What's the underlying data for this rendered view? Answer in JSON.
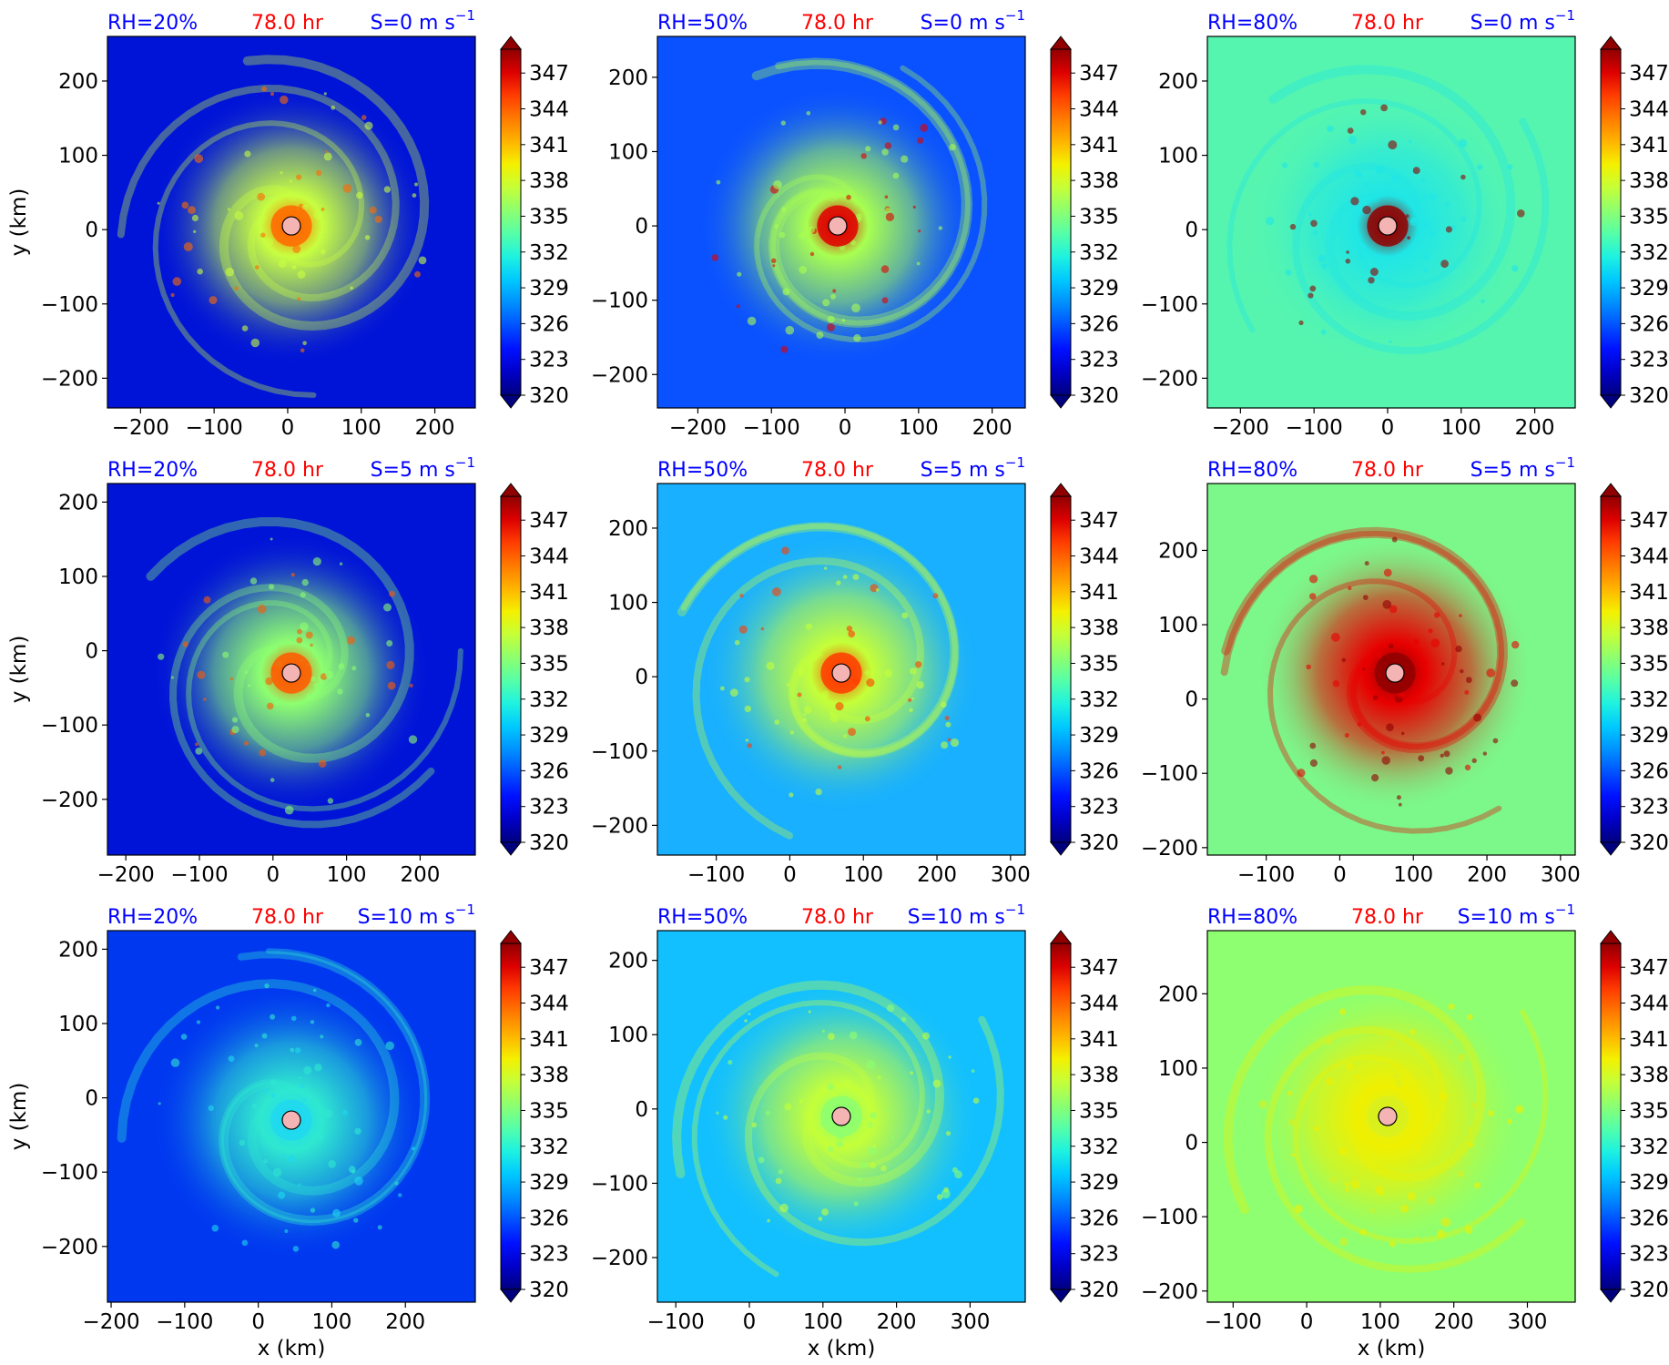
{
  "figure": {
    "time_label": "78.0 hr",
    "colorbar_ticks": [
      "347",
      "344",
      "341",
      "338",
      "335",
      "332",
      "329",
      "326",
      "323",
      "320"
    ],
    "colormap": [
      "#00007f",
      "#0000c8",
      "#0010ff",
      "#0050ff",
      "#0090ff",
      "#00c8ff",
      "#1ef2e0",
      "#55ffa8",
      "#8dff70",
      "#c5ff38",
      "#f4f000",
      "#ffb400",
      "#ff7a00",
      "#ff3c00",
      "#dc0000",
      "#900000"
    ],
    "x_axis_label": "x (km)",
    "y_axis_label": "y (km)"
  },
  "chart_data": [
    {
      "type": "heatmap",
      "rh_label": "RH=20%",
      "time_label": "78.0 hr",
      "shear_label": "S=0 m s",
      "shear_exp": "−1",
      "xlim": [
        -245,
        255
      ],
      "ylim": [
        -240,
        260
      ],
      "x_ticks": [
        -200,
        -100,
        0,
        100,
        200
      ],
      "y_ticks": [
        -200,
        -100,
        0,
        100,
        200
      ],
      "center": [
        5,
        5
      ],
      "colorbar_range": [
        320,
        349
      ],
      "colorbar_ticks": [
        320,
        323,
        326,
        329,
        332,
        335,
        338,
        341,
        344,
        347
      ],
      "xlabel": "",
      "ylabel": "y (km)",
      "background": "#0014d8",
      "core_color": "#ff6a00",
      "ring_color": "#c8ff40"
    },
    {
      "type": "heatmap",
      "rh_label": "RH=50%",
      "time_label": "78.0 hr",
      "shear_label": "S=0 m s",
      "shear_exp": "−1",
      "xlim": [
        -255,
        245
      ],
      "ylim": [
        -245,
        255
      ],
      "x_ticks": [
        -200,
        -100,
        0,
        100,
        200
      ],
      "y_ticks": [
        -200,
        -100,
        0,
        100,
        200
      ],
      "center": [
        -10,
        0
      ],
      "colorbar_range": [
        320,
        349
      ],
      "colorbar_ticks": [
        320,
        323,
        326,
        329,
        332,
        335,
        338,
        341,
        344,
        347
      ],
      "xlabel": "",
      "ylabel": "",
      "background": "#0a52ff",
      "core_color": "#e00000",
      "ring_color": "#a8ff50"
    },
    {
      "type": "heatmap",
      "rh_label": "RH=80%",
      "time_label": "78.0 hr",
      "shear_label": "S=0 m s",
      "shear_exp": "−1",
      "xlim": [
        -245,
        255
      ],
      "ylim": [
        -240,
        260
      ],
      "x_ticks": [
        -200,
        -100,
        0,
        100,
        200
      ],
      "y_ticks": [
        -200,
        -100,
        0,
        100,
        200
      ],
      "center": [
        0,
        5
      ],
      "colorbar_range": [
        320,
        349
      ],
      "colorbar_ticks": [
        320,
        323,
        326,
        329,
        332,
        335,
        338,
        341,
        344,
        347
      ],
      "xlabel": "",
      "ylabel": "",
      "background": "#55f5b0",
      "core_color": "#900000",
      "ring_color": "#20e6e6"
    },
    {
      "type": "heatmap",
      "rh_label": "RH=20%",
      "time_label": "78.0 hr",
      "shear_label": "S=5 m s",
      "shear_exp": "−1",
      "xlim": [
        -225,
        275
      ],
      "ylim": [
        -275,
        225
      ],
      "x_ticks": [
        -200,
        -100,
        0,
        100,
        200
      ],
      "y_ticks": [
        -200,
        -100,
        0,
        100,
        200
      ],
      "center": [
        25,
        -30
      ],
      "colorbar_range": [
        320,
        349
      ],
      "colorbar_ticks": [
        320,
        323,
        326,
        329,
        332,
        335,
        338,
        341,
        344,
        347
      ],
      "xlabel": "",
      "ylabel": "y (km)",
      "background": "#0014d8",
      "core_color": "#ff5a00",
      "ring_color": "#8dff70"
    },
    {
      "type": "heatmap",
      "rh_label": "RH=50%",
      "time_label": "78.0 hr",
      "shear_label": "S=5 m s",
      "shear_exp": "−1",
      "xlim": [
        -180,
        320
      ],
      "ylim": [
        -240,
        260
      ],
      "x_ticks": [
        -100,
        0,
        100,
        200,
        300
      ],
      "y_ticks": [
        -200,
        -100,
        0,
        100,
        200
      ],
      "center": [
        70,
        5
      ],
      "colorbar_range": [
        320,
        349
      ],
      "colorbar_ticks": [
        320,
        323,
        326,
        329,
        332,
        335,
        338,
        341,
        344,
        347
      ],
      "xlabel": "",
      "ylabel": "",
      "background": "#18b0ff",
      "core_color": "#ff3c00",
      "ring_color": "#c5ff38"
    },
    {
      "type": "heatmap",
      "rh_label": "RH=80%",
      "time_label": "78.0 hr",
      "shear_label": "S=5 m s",
      "shear_exp": "−1",
      "xlim": [
        -180,
        320
      ],
      "ylim": [
        -210,
        290
      ],
      "x_ticks": [
        -100,
        0,
        100,
        200,
        300
      ],
      "y_ticks": [
        -200,
        -100,
        0,
        100,
        200
      ],
      "center": [
        75,
        35
      ],
      "colorbar_range": [
        320,
        349
      ],
      "colorbar_ticks": [
        320,
        323,
        326,
        329,
        332,
        335,
        338,
        341,
        344,
        347
      ],
      "xlabel": "",
      "ylabel": "",
      "background": "#7cf88a",
      "core_color": "#900000",
      "ring_color": "#e80000"
    },
    {
      "type": "heatmap",
      "rh_label": "RH=20%",
      "time_label": "78.0 hr",
      "shear_label": "S=10 m s",
      "shear_exp": "−1",
      "xlim": [
        -205,
        295
      ],
      "ylim": [
        -275,
        225
      ],
      "x_ticks": [
        -200,
        -100,
        0,
        100,
        200
      ],
      "y_ticks": [
        -200,
        -100,
        0,
        100,
        200
      ],
      "center": [
        45,
        -30
      ],
      "colorbar_range": [
        320,
        349
      ],
      "colorbar_ticks": [
        320,
        323,
        326,
        329,
        332,
        335,
        338,
        341,
        344,
        347
      ],
      "xlabel": "x (km)",
      "ylabel": "y (km)",
      "background": "#0038f0",
      "core_color": "#20d8f0",
      "ring_color": "#2fe8d0"
    },
    {
      "type": "heatmap",
      "rh_label": "RH=50%",
      "time_label": "78.0 hr",
      "shear_label": "S=10 m s",
      "shear_exp": "−1",
      "xlim": [
        -125,
        375
      ],
      "ylim": [
        -260,
        240
      ],
      "x_ticks": [
        -100,
        0,
        100,
        200,
        300
      ],
      "y_ticks": [
        -200,
        -100,
        0,
        100,
        200
      ],
      "center": [
        125,
        -10
      ],
      "colorbar_range": [
        320,
        349
      ],
      "colorbar_ticks": [
        320,
        323,
        326,
        329,
        332,
        335,
        338,
        341,
        344,
        347
      ],
      "xlabel": "x (km)",
      "ylabel": "",
      "background": "#12c0ff",
      "core_color": "#8dff70",
      "ring_color": "#c5ff38"
    },
    {
      "type": "heatmap",
      "rh_label": "RH=80%",
      "time_label": "78.0 hr",
      "shear_label": "S=10 m s",
      "shear_exp": "−1",
      "xlim": [
        -135,
        365
      ],
      "ylim": [
        -215,
        285
      ],
      "x_ticks": [
        -100,
        0,
        100,
        200,
        300
      ],
      "y_ticks": [
        -200,
        -100,
        0,
        100,
        200
      ],
      "center": [
        110,
        35
      ],
      "colorbar_range": [
        320,
        349
      ],
      "colorbar_ticks": [
        320,
        323,
        326,
        329,
        332,
        335,
        338,
        341,
        344,
        347
      ],
      "xlabel": "x (km)",
      "ylabel": "",
      "background": "#8dff70",
      "core_color": "#d8f020",
      "ring_color": "#f0f000"
    }
  ]
}
